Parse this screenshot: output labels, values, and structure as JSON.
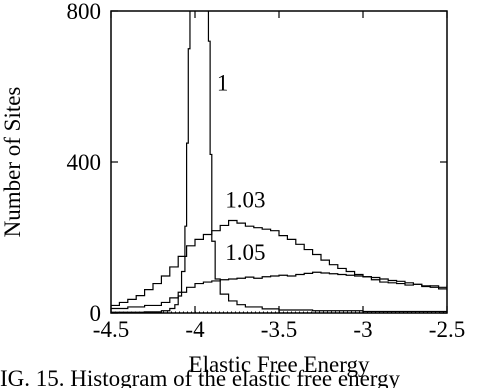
{
  "chart_data": {
    "type": "line",
    "title": "",
    "xlabel": "Elastic Free Energy",
    "ylabel": "Number of Sites",
    "xlim": [
      -4.5,
      -2.5
    ],
    "ylim": [
      0,
      800
    ],
    "xticks": [
      -4.5,
      -4,
      -3.5,
      -3,
      -2.5
    ],
    "xtick_labels": [
      "-4.5",
      "-4",
      "-3.5",
      "-3",
      "-2.5"
    ],
    "yticks": [
      0,
      400,
      800
    ],
    "ytick_labels": [
      "0",
      "400",
      "800"
    ],
    "baseline_style": "dotted",
    "step": true,
    "grid": false,
    "legend": "none",
    "series": [
      {
        "name": "1",
        "x": [
          -4.5,
          -4.3,
          -4.2,
          -4.15,
          -4.12,
          -4.1,
          -4.08,
          -4.06,
          -4.05,
          -4.04,
          -4.03,
          -4.02,
          -4.0,
          -3.98,
          -3.96,
          -3.94,
          -3.93,
          -3.92,
          -3.91,
          -3.9,
          -3.88,
          -3.85,
          -3.8,
          -3.75,
          -3.7,
          -3.6,
          -3.5,
          -3.3,
          -3.0,
          -2.5
        ],
        "y": [
          2,
          3,
          6,
          12,
          22,
          45,
          110,
          230,
          450,
          700,
          820,
          820,
          820,
          820,
          820,
          820,
          820,
          720,
          420,
          190,
          90,
          50,
          32,
          22,
          16,
          11,
          8,
          6,
          4,
          2
        ]
      },
      {
        "name": "1.03",
        "x": [
          -4.5,
          -4.45,
          -4.4,
          -4.35,
          -4.3,
          -4.25,
          -4.2,
          -4.15,
          -4.1,
          -4.05,
          -4.0,
          -3.95,
          -3.9,
          -3.85,
          -3.8,
          -3.75,
          -3.7,
          -3.65,
          -3.6,
          -3.55,
          -3.5,
          -3.45,
          -3.4,
          -3.35,
          -3.3,
          -3.25,
          -3.2,
          -3.15,
          -3.1,
          -3.05,
          -3.0,
          -2.95,
          -2.9,
          -2.85,
          -2.8,
          -2.75,
          -2.7,
          -2.65,
          -2.6,
          -2.55,
          -2.5
        ],
        "y": [
          20,
          28,
          36,
          46,
          62,
          78,
          98,
          122,
          150,
          178,
          195,
          208,
          218,
          232,
          245,
          238,
          230,
          226,
          222,
          218,
          205,
          195,
          182,
          168,
          155,
          140,
          128,
          118,
          110,
          102,
          96,
          88,
          82,
          80,
          78,
          74,
          76,
          70,
          72,
          68,
          74
        ]
      },
      {
        "name": "1.05",
        "x": [
          -4.5,
          -4.4,
          -4.3,
          -4.2,
          -4.15,
          -4.1,
          -4.05,
          -4.0,
          -3.95,
          -3.9,
          -3.85,
          -3.8,
          -3.75,
          -3.7,
          -3.65,
          -3.6,
          -3.55,
          -3.5,
          -3.45,
          -3.4,
          -3.35,
          -3.3,
          -3.25,
          -3.2,
          -3.15,
          -3.1,
          -3.05,
          -3.0,
          -2.95,
          -2.9,
          -2.85,
          -2.8,
          -2.75,
          -2.7,
          -2.65,
          -2.6,
          -2.55,
          -2.5
        ],
        "y": [
          12,
          16,
          20,
          28,
          40,
          55,
          68,
          78,
          82,
          85,
          88,
          90,
          92,
          95,
          92,
          96,
          98,
          100,
          98,
          102,
          105,
          108,
          106,
          104,
          102,
          100,
          98,
          96,
          94,
          90,
          86,
          84,
          80,
          76,
          72,
          68,
          64,
          60
        ]
      }
    ],
    "annotations": [
      {
        "text": "1",
        "x": -3.87,
        "y": 590
      },
      {
        "text": "1.03",
        "x": -3.82,
        "y": 280
      },
      {
        "text": "1.05",
        "x": -3.82,
        "y": 140
      }
    ],
    "caption": "IG. 15.  Histogram of the elastic free energy"
  }
}
